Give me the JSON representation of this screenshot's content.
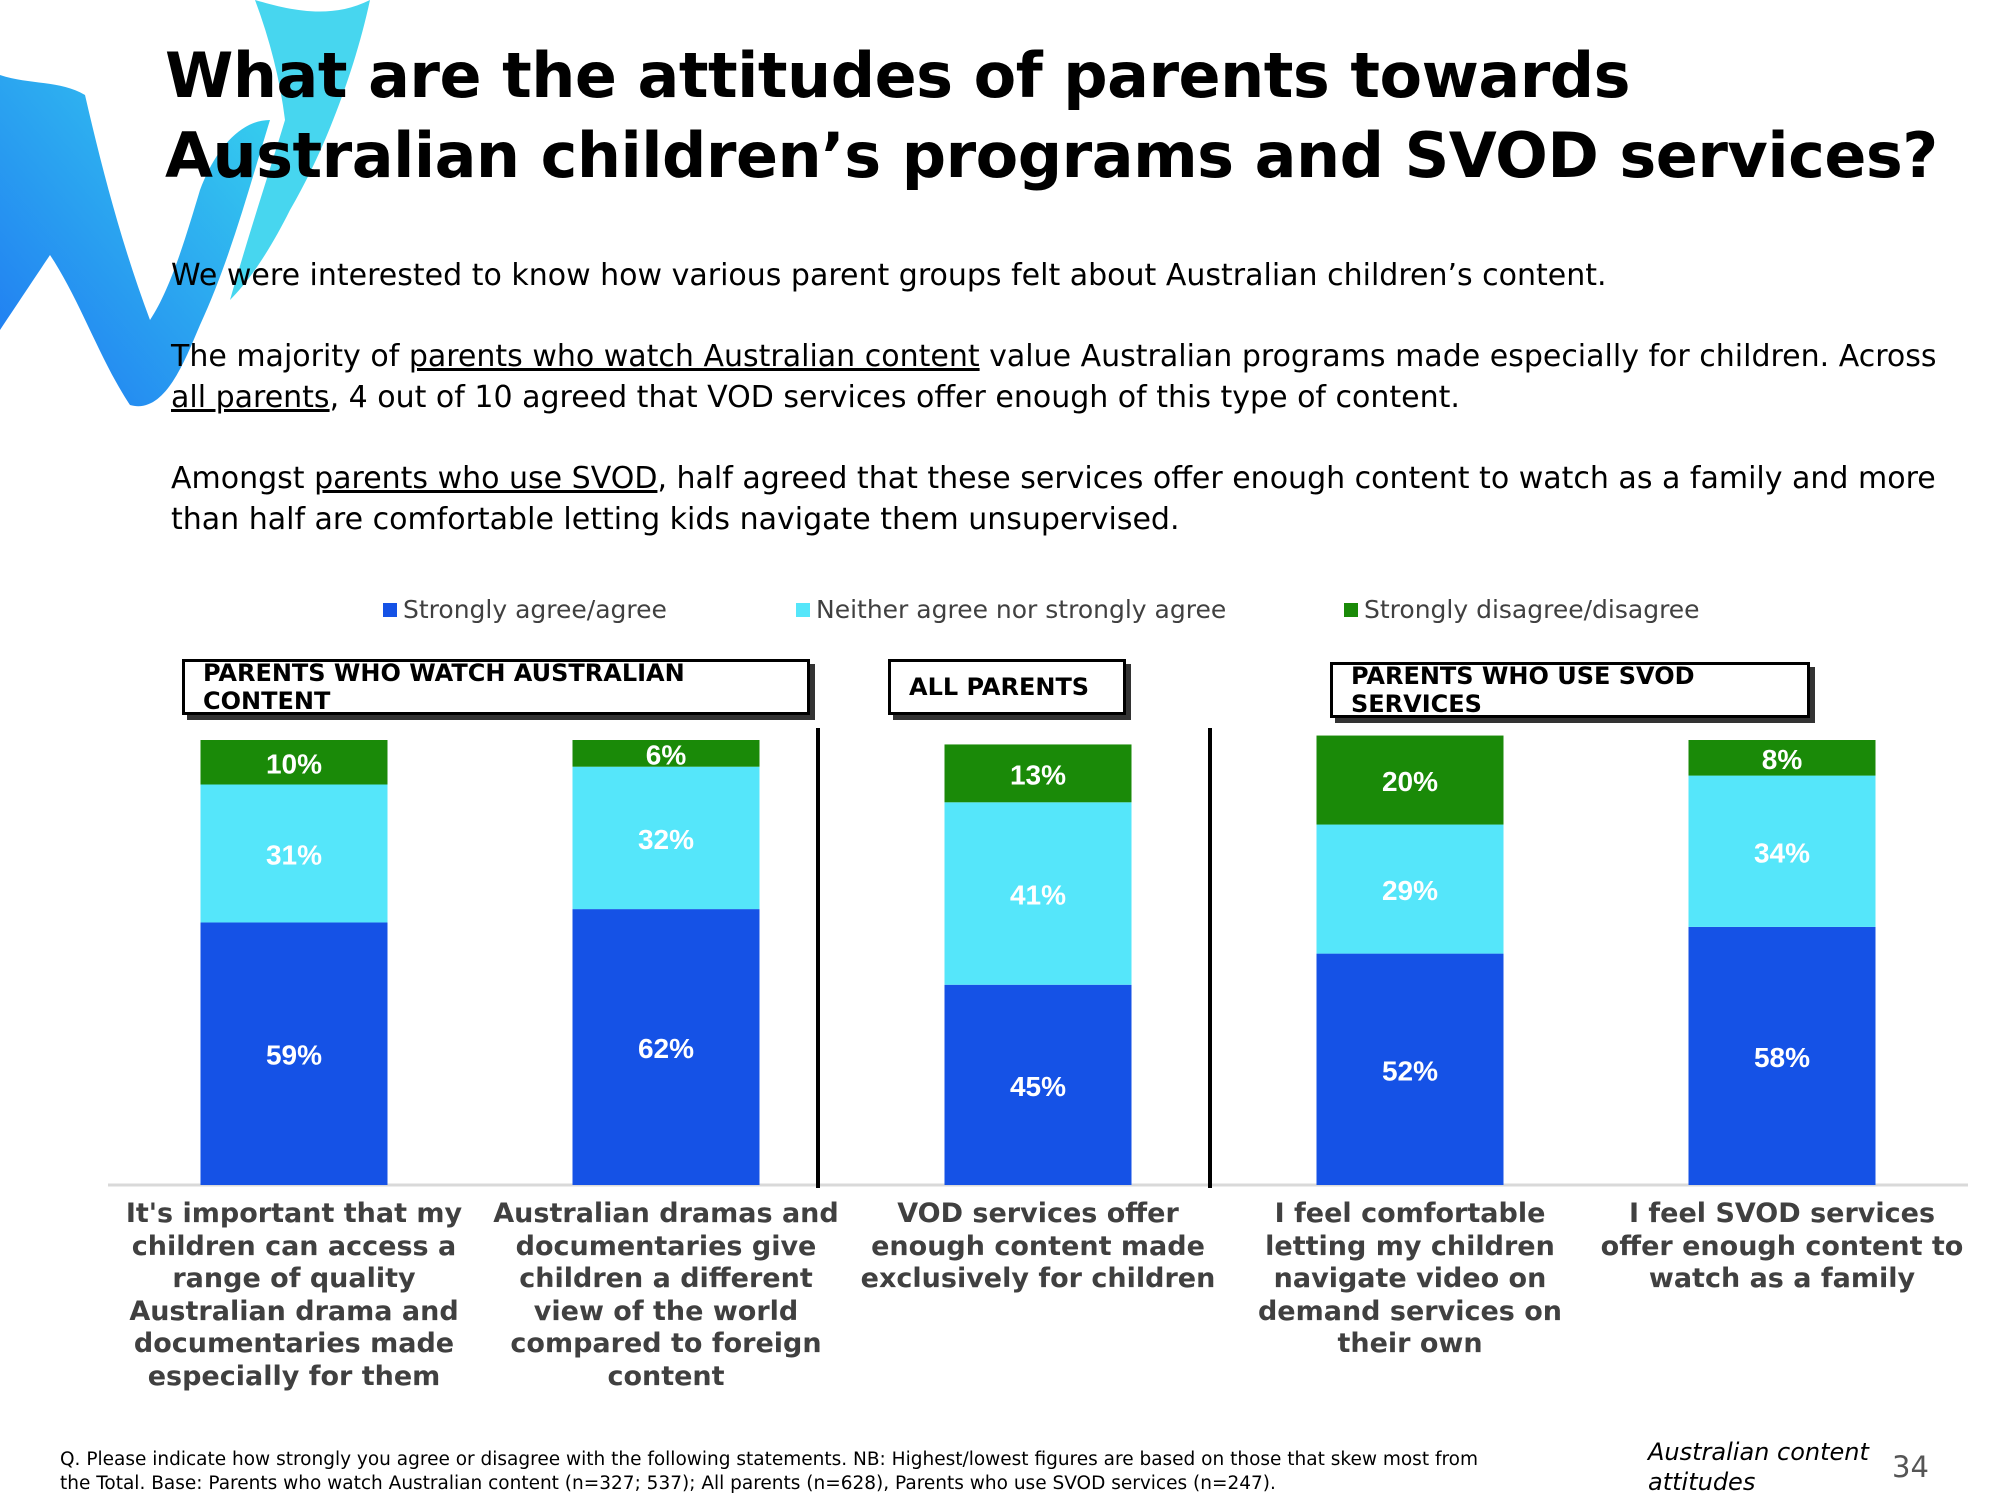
{
  "title": "What are the attitudes of parents towards Australian children’s programs and SVOD services?",
  "intro": {
    "p1": "We were interested to know how various parent groups felt about Australian children’s content.",
    "p2_a": "The majority of ",
    "p2_u1": "parents who watch Australian content",
    "p2_b": " value Australian programs made especially for children. Across ",
    "p2_u2": "all parents",
    "p2_c": ", 4 out of 10 agreed that VOD services offer enough of this type of content.",
    "p3_a": "Amongst ",
    "p3_u": "parents who use SVOD",
    "p3_b": ", half agreed that these services offer enough content to watch as a family and more than half are comfortable letting kids navigate them unsupervised."
  },
  "groups": {
    "g1": "PARENTS WHO WATCH AUSTRALIAN CONTENT",
    "g2": "ALL PARENTS",
    "g3": "PARENTS WHO USE SVOD SERVICES"
  },
  "colors": {
    "agree": "#1552e6",
    "neither": "#55e6fa",
    "disagree": "#1a8a08",
    "logo_a": "#1f77f2",
    "logo_b": "#37d3ee"
  },
  "chart_data": {
    "type": "bar",
    "stacked": true,
    "categories": [
      "It's important that my children can access a range of quality Australian drama and documentaries made especially for them",
      "Australian dramas and documentaries give children a different view of the world compared to foreign content",
      "VOD services offer enough content made exclusively for children",
      "I feel comfortable letting my children navigate video on demand services on their own",
      "I feel SVOD services offer enough content to watch as a family"
    ],
    "series": [
      {
        "name": "Strongly agree/agree",
        "values": [
          59,
          62,
          45,
          52,
          58
        ],
        "labels": [
          "59%",
          "62%",
          "45%",
          "52%",
          "58%"
        ]
      },
      {
        "name": "Neither agree nor strongly agree",
        "values": [
          31,
          32,
          41,
          29,
          34
        ],
        "labels": [
          "31%",
          "32%",
          "41%",
          "29%",
          "34%"
        ]
      },
      {
        "name": "Strongly disagree/disagree",
        "values": [
          10,
          6,
          13,
          20,
          8
        ],
        "labels": [
          "10%",
          "6%",
          "13%",
          "20%",
          "8%"
        ]
      }
    ],
    "ylim": [
      0,
      100
    ],
    "legend_position": "top"
  },
  "footnote": "Q. Please indicate how strongly you agree or disagree with the following statements. NB: Highest/lowest figures are based on those that skew most from the Total. Base: Parents who watch Australian content (n=327; 537); All parents (n=628), Parents who use SVOD services (n=247).",
  "footer_section": "Australian content attitudes",
  "page_number": "34"
}
